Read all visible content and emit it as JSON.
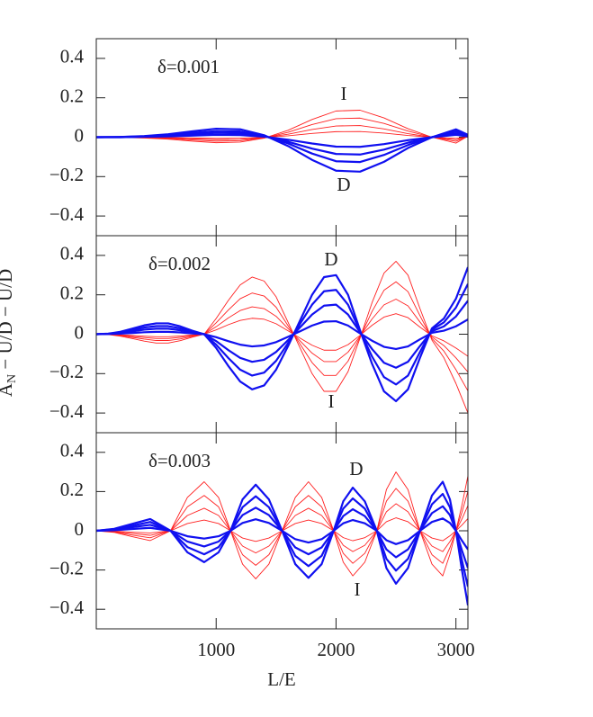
{
  "chart_data": [
    {
      "type": "line",
      "annotations": [
        {
          "text": "δ=0.001"
        },
        {
          "text": "I",
          "color": "#ff2020"
        },
        {
          "text": "D",
          "color": "#1010f0"
        }
      ],
      "x": [
        0,
        200,
        400,
        600,
        800,
        1000,
        1200,
        1400,
        1600,
        1800,
        2000,
        2200,
        2400,
        2600,
        2800,
        3000,
        3100
      ],
      "xlim": [
        0,
        3100
      ],
      "xticks": [
        1000,
        2000,
        3000
      ],
      "ylim": [
        -0.5,
        0.5
      ],
      "yticks": [
        {
          "value": -0.4,
          "label": "−0.4"
        },
        {
          "value": -0.2,
          "label": "−0.2"
        },
        0,
        0.2,
        0.4
      ],
      "series": [
        {
          "color": "#ff2020",
          "linewidth": 0.9,
          "values": [
            0,
            -0.001,
            -0.004,
            -0.01,
            -0.02,
            -0.028,
            -0.025,
            -0.005,
            0.035,
            0.09,
            0.133,
            0.137,
            0.098,
            0.043,
            0,
            -0.03,
            0.005
          ]
        },
        {
          "color": "#ff2020",
          "linewidth": 0.9,
          "values": [
            0,
            -0.001,
            -0.003,
            -0.007,
            -0.014,
            -0.02,
            -0.018,
            -0.004,
            0.025,
            0.064,
            0.094,
            0.097,
            0.07,
            0.031,
            0,
            -0.021,
            0.004
          ]
        },
        {
          "color": "#ff2020",
          "linewidth": 0.9,
          "values": [
            0,
            0,
            -0.002,
            -0.004,
            -0.009,
            -0.012,
            -0.011,
            -0.002,
            0.015,
            0.039,
            0.057,
            0.059,
            0.042,
            0.018,
            0,
            -0.013,
            0.002
          ]
        },
        {
          "color": "#ff2020",
          "linewidth": 0.9,
          "values": [
            0,
            0,
            -0.001,
            -0.002,
            -0.004,
            -0.006,
            -0.005,
            -0.001,
            0.007,
            0.019,
            0.028,
            0.029,
            0.021,
            0.009,
            0,
            -0.006,
            0.001
          ]
        },
        {
          "color": "#1010f0",
          "linewidth": 2.2,
          "values": [
            0,
            0.001,
            0.006,
            0.015,
            0.03,
            0.043,
            0.04,
            0.01,
            -0.045,
            -0.115,
            -0.17,
            -0.175,
            -0.125,
            -0.055,
            0,
            0.04,
            0.012
          ]
        },
        {
          "color": "#1010f0",
          "linewidth": 2.2,
          "values": [
            0,
            0.001,
            0.004,
            0.011,
            0.022,
            0.031,
            0.029,
            0.007,
            -0.032,
            -0.083,
            -0.122,
            -0.126,
            -0.09,
            -0.04,
            0,
            0.03,
            0.01
          ]
        },
        {
          "color": "#1010f0",
          "linewidth": 2.2,
          "values": [
            0,
            0,
            0.003,
            0.008,
            0.015,
            0.022,
            0.02,
            0.005,
            -0.023,
            -0.058,
            -0.085,
            -0.088,
            -0.063,
            -0.028,
            0,
            0.02,
            0.006
          ]
        },
        {
          "color": "#1010f0",
          "linewidth": 2.2,
          "values": [
            0,
            0,
            0.002,
            0.004,
            0.008,
            0.012,
            0.011,
            0.003,
            -0.013,
            -0.032,
            -0.048,
            -0.049,
            -0.035,
            -0.015,
            0,
            0.012,
            0.004
          ]
        }
      ]
    },
    {
      "type": "line",
      "annotations": [
        {
          "text": "δ=0.002"
        },
        {
          "text": "D",
          "color": "#1010f0"
        },
        {
          "text": "I",
          "color": "#ff2020"
        }
      ],
      "ylabel": "A",
      "ylabel_sub": "N",
      "ylabel_rest": " − U/D − U/D",
      "x": [
        0,
        100,
        200,
        300,
        400,
        500,
        600,
        700,
        800,
        900,
        1000,
        1100,
        1200,
        1300,
        1400,
        1500,
        1600,
        1700,
        1800,
        1900,
        2000,
        2100,
        2200,
        2300,
        2400,
        2500,
        2600,
        2700,
        2800,
        2900,
        3000,
        3100
      ],
      "xlim": [
        0,
        3100
      ],
      "xticks": [
        1000,
        2000,
        3000
      ],
      "ylim": [
        -0.5,
        0.5
      ],
      "yticks": [
        {
          "value": -0.4,
          "label": "−0.4"
        },
        {
          "value": -0.2,
          "label": "−0.2"
        },
        0,
        0.2,
        0.4
      ],
      "series": [
        {
          "color": "#ff2020",
          "linewidth": 0.9,
          "values": [
            0,
            -0.002,
            -0.01,
            -0.022,
            -0.035,
            -0.045,
            -0.045,
            -0.033,
            -0.015,
            0,
            0.08,
            0.17,
            0.25,
            0.29,
            0.27,
            0.19,
            0.06,
            -0.07,
            -0.2,
            -0.29,
            -0.29,
            -0.19,
            -0.02,
            0.16,
            0.31,
            0.37,
            0.3,
            0.13,
            -0.03,
            -0.12,
            -0.25,
            -0.4
          ]
        },
        {
          "color": "#ff2020",
          "linewidth": 0.9,
          "values": [
            0,
            -0.001,
            -0.007,
            -0.016,
            -0.025,
            -0.032,
            -0.032,
            -0.024,
            -0.011,
            0,
            0.058,
            0.122,
            0.18,
            0.209,
            0.194,
            0.137,
            0.043,
            -0.05,
            -0.144,
            -0.209,
            -0.209,
            -0.137,
            -0.014,
            0.115,
            0.223,
            0.266,
            0.216,
            0.094,
            -0.022,
            -0.086,
            -0.18,
            -0.288
          ]
        },
        {
          "color": "#ff2020",
          "linewidth": 0.9,
          "values": [
            0,
            -0.001,
            -0.005,
            -0.011,
            -0.017,
            -0.022,
            -0.022,
            -0.016,
            -0.007,
            0,
            0.038,
            0.082,
            0.12,
            0.139,
            0.13,
            0.091,
            0.029,
            -0.034,
            -0.096,
            -0.139,
            -0.139,
            -0.091,
            -0.01,
            0.077,
            0.149,
            0.178,
            0.144,
            0.062,
            -0.014,
            -0.058,
            -0.12,
            -0.192
          ]
        },
        {
          "color": "#ff2020",
          "linewidth": 0.9,
          "values": [
            0,
            -0.001,
            -0.003,
            -0.006,
            -0.01,
            -0.013,
            -0.013,
            -0.009,
            -0.004,
            0,
            0.022,
            0.048,
            0.07,
            0.081,
            0.076,
            0.053,
            0.017,
            -0.02,
            -0.056,
            -0.081,
            -0.081,
            -0.053,
            -0.006,
            0.045,
            0.087,
            0.104,
            0.084,
            0.036,
            -0.008,
            -0.034,
            -0.07,
            -0.112
          ]
        },
        {
          "color": "#1010f0",
          "linewidth": 2.2,
          "values": [
            0,
            0.003,
            0.012,
            0.028,
            0.045,
            0.055,
            0.055,
            0.04,
            0.018,
            0,
            -0.07,
            -0.16,
            -0.24,
            -0.28,
            -0.26,
            -0.18,
            -0.06,
            0.07,
            0.2,
            0.29,
            0.3,
            0.2,
            0.02,
            -0.15,
            -0.29,
            -0.34,
            -0.28,
            -0.12,
            0.03,
            0.08,
            0.18,
            0.34
          ]
        },
        {
          "color": "#1010f0",
          "linewidth": 2.2,
          "values": [
            0,
            0.002,
            0.009,
            0.021,
            0.034,
            0.041,
            0.041,
            0.03,
            0.014,
            0,
            -0.053,
            -0.12,
            -0.18,
            -0.21,
            -0.195,
            -0.135,
            -0.045,
            0.053,
            0.15,
            0.218,
            0.225,
            0.15,
            0.015,
            -0.113,
            -0.218,
            -0.255,
            -0.21,
            -0.09,
            0.023,
            0.06,
            0.135,
            0.255
          ]
        },
        {
          "color": "#1010f0",
          "linewidth": 2.2,
          "values": [
            0,
            0.002,
            0.006,
            0.014,
            0.023,
            0.028,
            0.028,
            0.02,
            0.009,
            0,
            -0.035,
            -0.08,
            -0.12,
            -0.14,
            -0.13,
            -0.09,
            -0.03,
            0.035,
            0.1,
            0.145,
            0.15,
            0.1,
            0.01,
            -0.075,
            -0.145,
            -0.17,
            -0.14,
            -0.06,
            0.015,
            0.04,
            0.09,
            0.17
          ]
        },
        {
          "color": "#1010f0",
          "linewidth": 2.2,
          "values": [
            0,
            0.001,
            0.003,
            0.006,
            0.01,
            0.012,
            0.012,
            0.009,
            0.004,
            0,
            -0.015,
            -0.035,
            -0.053,
            -0.062,
            -0.057,
            -0.04,
            -0.013,
            0.015,
            0.044,
            0.064,
            0.066,
            0.044,
            0.004,
            -0.033,
            -0.064,
            -0.075,
            -0.062,
            -0.026,
            0.007,
            0.018,
            0.04,
            0.075
          ]
        }
      ]
    },
    {
      "type": "line",
      "annotations": [
        {
          "text": "δ=0.003"
        },
        {
          "text": "D",
          "color": "#1010f0"
        },
        {
          "text": "I",
          "color": "#ff2020"
        }
      ],
      "xlabel": "L/E",
      "x": [
        0,
        150,
        300,
        450,
        620,
        760,
        900,
        1020,
        1120,
        1220,
        1330,
        1440,
        1550,
        1660,
        1770,
        1880,
        1980,
        2060,
        2140,
        2240,
        2340,
        2420,
        2500,
        2600,
        2700,
        2800,
        2890,
        2950,
        3000,
        3050,
        3100
      ],
      "xlim": [
        0,
        3100
      ],
      "xticks": [
        1000,
        2000,
        3000
      ],
      "ylim": [
        -0.5,
        0.5
      ],
      "yticks": [
        {
          "value": -0.4,
          "label": "−0.4"
        },
        {
          "value": -0.2,
          "label": "−0.2"
        },
        0,
        0.2,
        0.4
      ],
      "series": [
        {
          "color": "#ff2020",
          "linewidth": 0.9,
          "values": [
            0,
            -0.008,
            -0.03,
            -0.05,
            0,
            0.17,
            0.25,
            0.17,
            0,
            -0.17,
            -0.245,
            -0.17,
            0,
            0.17,
            0.25,
            0.17,
            0,
            -0.16,
            -0.23,
            -0.16,
            0,
            0.21,
            0.3,
            0.21,
            0,
            -0.17,
            -0.23,
            -0.12,
            0,
            0.13,
            0.28
          ]
        },
        {
          "color": "#ff2020",
          "linewidth": 0.9,
          "values": [
            0,
            -0.006,
            -0.022,
            -0.036,
            0,
            0.122,
            0.18,
            0.122,
            0,
            -0.122,
            -0.176,
            -0.122,
            0,
            0.122,
            0.18,
            0.122,
            0,
            -0.115,
            -0.166,
            -0.115,
            0,
            0.151,
            0.216,
            0.151,
            0,
            -0.122,
            -0.166,
            -0.086,
            0,
            0.094,
            0.202
          ]
        },
        {
          "color": "#ff2020",
          "linewidth": 0.9,
          "values": [
            0,
            -0.004,
            -0.014,
            -0.023,
            0,
            0.078,
            0.115,
            0.078,
            0,
            -0.078,
            -0.113,
            -0.078,
            0,
            0.078,
            0.115,
            0.078,
            0,
            -0.074,
            -0.106,
            -0.074,
            0,
            0.097,
            0.138,
            0.097,
            0,
            -0.078,
            -0.106,
            -0.055,
            0,
            0.06,
            0.129
          ]
        },
        {
          "color": "#ff2020",
          "linewidth": 0.9,
          "values": [
            0,
            -0.002,
            -0.007,
            -0.011,
            0,
            0.037,
            0.055,
            0.037,
            0,
            -0.037,
            -0.054,
            -0.037,
            0,
            0.037,
            0.055,
            0.037,
            0,
            -0.035,
            -0.051,
            -0.035,
            0,
            0.046,
            0.066,
            0.046,
            0,
            -0.037,
            -0.051,
            -0.026,
            0,
            0.029,
            0.062
          ]
        },
        {
          "color": "#1010f0",
          "linewidth": 2.2,
          "values": [
            0,
            0.01,
            0.035,
            0.06,
            0,
            -0.11,
            -0.16,
            -0.11,
            0,
            0.16,
            0.235,
            0.16,
            0,
            -0.17,
            -0.24,
            -0.17,
            0,
            0.15,
            0.22,
            0.15,
            0,
            -0.19,
            -0.27,
            -0.19,
            0,
            0.18,
            0.25,
            0.16,
            0,
            -0.2,
            -0.38
          ]
        },
        {
          "color": "#1010f0",
          "linewidth": 2.2,
          "values": [
            0,
            0.008,
            0.026,
            0.045,
            0,
            -0.083,
            -0.12,
            -0.083,
            0,
            0.12,
            0.176,
            0.12,
            0,
            -0.128,
            -0.18,
            -0.128,
            0,
            0.113,
            0.165,
            0.113,
            0,
            -0.143,
            -0.203,
            -0.143,
            0,
            0.135,
            0.188,
            0.12,
            0,
            -0.15,
            -0.285
          ]
        },
        {
          "color": "#1010f0",
          "linewidth": 2.2,
          "values": [
            0,
            0.005,
            0.018,
            0.03,
            0,
            -0.055,
            -0.08,
            -0.055,
            0,
            0.08,
            0.118,
            0.08,
            0,
            -0.085,
            -0.12,
            -0.085,
            0,
            0.075,
            0.11,
            0.075,
            0,
            -0.095,
            -0.135,
            -0.095,
            0,
            0.09,
            0.125,
            0.08,
            0,
            -0.1,
            -0.19
          ]
        },
        {
          "color": "#1010f0",
          "linewidth": 2.2,
          "values": [
            0,
            0.003,
            0.009,
            0.015,
            0,
            -0.028,
            -0.04,
            -0.028,
            0,
            0.04,
            0.059,
            0.04,
            0,
            -0.043,
            -0.06,
            -0.043,
            0,
            0.038,
            0.055,
            0.038,
            0,
            -0.048,
            -0.068,
            -0.048,
            0,
            0.045,
            0.063,
            0.04,
            0,
            -0.05,
            -0.095
          ]
        }
      ]
    }
  ]
}
